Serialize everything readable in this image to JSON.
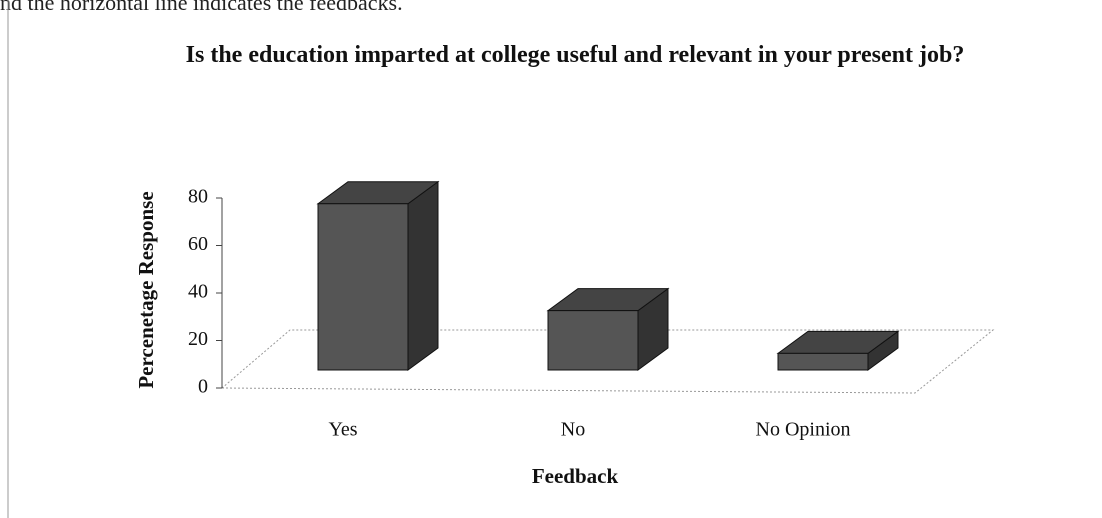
{
  "intro_text": "nd the horizontal line indicates the feedbacks.",
  "chart_data": {
    "type": "bar3d",
    "title": "Is the education imparted at college useful and relevant in your present job?",
    "ylabel": "Percenetage Response",
    "xlabel": "Feedback",
    "categories": [
      "Yes",
      "No",
      "No Opinion"
    ],
    "values": [
      70,
      25,
      7
    ],
    "color": "#555555",
    "ylim": [
      0,
      80
    ],
    "yticks": [
      0,
      20,
      40,
      60,
      80
    ]
  }
}
